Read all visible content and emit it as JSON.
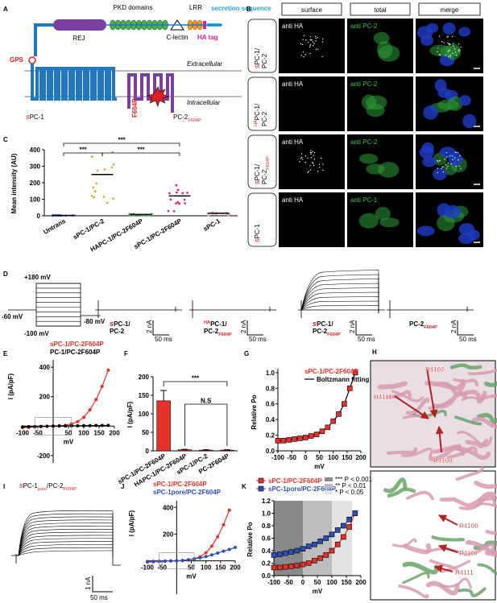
{
  "A": {
    "label": "A",
    "pkd": "PKD domains",
    "lrr": "LRR",
    "secretion": "secretion sequence",
    "rej": "REJ",
    "clectin": "C-lectin",
    "ha_tag": "HA tag",
    "gps": "GPS",
    "extracellular": "Extracellular",
    "intracellular": "Intracellular",
    "mutation": "F604P",
    "pc1": [
      "s",
      "PC-1"
    ],
    "pc2": [
      "PC-2",
      "F604P"
    ]
  },
  "B": {
    "label": "B",
    "columns": [
      "surface",
      "total",
      "merge"
    ],
    "rows": [
      {
        "name": [
          "s",
          "PC-1/",
          "PC-2"
        ],
        "surface": "anti HA",
        "total": "anti PC-2"
      },
      {
        "name": [
          "HA",
          "PC-1/",
          "PC-2"
        ],
        "surface": "anti HA",
        "total": "anti PC-2"
      },
      {
        "name": [
          "s",
          "PC-1/",
          "PC-2",
          "F604P"
        ],
        "surface": "anti HA",
        "total": "anti PC-2"
      },
      {
        "name": [
          "s",
          "PC-1"
        ],
        "surface": "anti HA",
        "total": "anti PC-1"
      }
    ]
  },
  "D": {
    "label": "D",
    "protocol": [
      "+180 mV",
      "-60 mV",
      "-100 mV",
      "-80 mV"
    ],
    "traces": [
      {
        "name": [
          "s",
          "PC-1/",
          "PC-2"
        ],
        "scale": [
          "2 nA",
          "50 ms"
        ]
      },
      {
        "name": [
          "HA",
          "PC-1/",
          "PC-2",
          "F604P"
        ],
        "scale": [
          "2 nA",
          "50 ms"
        ]
      },
      {
        "name": [
          "s",
          "PC-1/",
          "PC-2",
          "F604P"
        ],
        "scale": [
          "2 nA",
          "50 ms"
        ]
      },
      {
        "name": [
          "PC-2",
          "F604P"
        ],
        "scale": [
          "2 nA",
          "50 ms"
        ]
      }
    ]
  },
  "H": {
    "label": "H",
    "top": [
      "R4107",
      "H4111",
      "R4100"
    ],
    "bottom": [
      "R4100",
      "R4107",
      "H4111"
    ]
  },
  "I": {
    "label": "I",
    "name": [
      "s",
      "PC-1",
      "pore",
      "/PC-2",
      "F604P"
    ],
    "scale": [
      "1 nA",
      "50 ms"
    ]
  },
  "chart_data": [
    {
      "type": "dot",
      "label": "C",
      "y_label": "Mean intensity (AU)",
      "categories": [
        "Untrans",
        "sPC-1/PC-2",
        "HAPC-1/PC-2F604P",
        "sPC-1/PC-2F604P",
        "sPC-1"
      ],
      "values": [
        2,
        250,
        8,
        120,
        15
      ],
      "colors": [
        "#1a3fb0",
        "#f39c12",
        "#3cb44b",
        "#e6194b",
        "#f4a6b8"
      ],
      "ylim": [
        0,
        400
      ],
      "yticks": [
        0,
        100,
        200,
        300,
        400
      ],
      "annotations": [
        "***",
        "***",
        "***"
      ]
    },
    {
      "type": "line",
      "label": "E",
      "y_label": "I (pA/pF)",
      "x_label": "mV",
      "marker": "circle",
      "x": [
        -100,
        -80,
        -60,
        -40,
        -20,
        0,
        20,
        40,
        60,
        80,
        100,
        120,
        140,
        160,
        180
      ],
      "series": [
        {
          "name": "sPC-1/PC-2F604P",
          "color": "#e8302a",
          "values": [
            -10,
            -8,
            -5,
            -3,
            -1,
            0,
            2,
            5,
            15,
            30,
            60,
            110,
            180,
            270,
            380
          ]
        },
        {
          "name": "PC-1/PC-2F604P",
          "color": "#000000",
          "values": [
            -5,
            -4,
            -3,
            -2,
            -1,
            0,
            1,
            1,
            2,
            2,
            3,
            3,
            4,
            4,
            5
          ]
        }
      ],
      "xlim": [
        -100,
        200
      ],
      "ylim": [
        -250,
        450
      ],
      "xticks": [
        -100,
        -50,
        50,
        100,
        150,
        200
      ],
      "yticks": [
        -200,
        200,
        400
      ]
    },
    {
      "type": "bar",
      "label": "F",
      "y_label": "I (pA/pF)",
      "categories": [
        "sPC-1/PC-2F604P",
        "HAPC-1/PC-2F604P",
        "sPC-1/PC-2",
        "PC-2F604P"
      ],
      "values": [
        135,
        3,
        2,
        2
      ],
      "errors": [
        28,
        1,
        1,
        1
      ],
      "color": "#e8302a",
      "ylim": [
        0,
        200
      ],
      "yticks": [
        0,
        50,
        100,
        150,
        200
      ],
      "annotations": [
        "***",
        "N.S"
      ]
    },
    {
      "type": "line",
      "label": "G",
      "y_label": "Relative Po",
      "x_label": "mV",
      "marker": "square",
      "fit_label": "Boltzmann fitting",
      "x": [
        -100,
        -80,
        -60,
        -40,
        -20,
        0,
        20,
        40,
        60,
        80,
        100,
        120,
        140,
        160,
        180
      ],
      "series": [
        {
          "name": "sPC-1/PC-2F604P",
          "color": "#e8302a",
          "values": [
            0.13,
            0.13,
            0.14,
            0.15,
            0.16,
            0.17,
            0.19,
            0.21,
            0.25,
            0.3,
            0.38,
            0.47,
            0.6,
            0.8,
            1.0
          ]
        }
      ],
      "xlim": [
        -100,
        200
      ],
      "ylim": [
        0,
        1.05
      ],
      "xticks": [
        -100,
        -50,
        0,
        50,
        100,
        150,
        200
      ],
      "yticks": [
        {
          "value": 0,
          "label": "0.0"
        },
        0.2,
        0.4,
        0.6,
        0.8,
        {
          "value": 1,
          "label": "1.0"
        }
      ]
    },
    {
      "type": "line",
      "label": "J",
      "y_label": "I (pA/pF)",
      "x_label": "mV",
      "marker": "circle",
      "x": [
        -100,
        -80,
        -60,
        -40,
        -20,
        0,
        20,
        40,
        60,
        80,
        100,
        120,
        140,
        160,
        180,
        200
      ],
      "series": [
        {
          "name": "sPC-1/PC-2F604P",
          "color": "#e8302a",
          "values": [
            -10,
            -8,
            -5,
            -3,
            -1,
            0,
            2,
            5,
            15,
            30,
            60,
            110,
            180,
            270,
            380,
            null
          ]
        },
        {
          "name": "sPC-1pore/PC-2F604P",
          "color": "#2a4fb5",
          "values": [
            -5,
            -4,
            -3,
            -2,
            -1,
            0,
            3,
            8,
            14,
            22,
            32,
            44,
            58,
            72,
            85,
            100
          ]
        }
      ],
      "xlim": [
        -100,
        200
      ],
      "ylim": [
        -250,
        450
      ],
      "xticks": [
        -100,
        -50,
        50,
        100,
        150,
        200
      ],
      "yticks": [
        200,
        400
      ]
    },
    {
      "type": "line",
      "label": "K",
      "y_label": "Relative Po",
      "x_label": "mV",
      "marker": "square",
      "x": [
        -100,
        -80,
        -60,
        -40,
        -20,
        0,
        20,
        40,
        60,
        80,
        100,
        120,
        140,
        160,
        180
      ],
      "series": [
        {
          "name": "sPC-1/PC-2F604P",
          "color": "#e8302a",
          "values": [
            0.13,
            0.13,
            0.14,
            0.15,
            0.16,
            0.18,
            0.2,
            0.24,
            0.28,
            0.33,
            0.4,
            0.5,
            0.62,
            0.78,
            1.0
          ]
        },
        {
          "name": "sPC-1pore/PC-2F604P",
          "color": "#2a4fb5",
          "values": [
            0.33,
            0.34,
            0.36,
            0.38,
            0.4,
            0.43,
            0.47,
            0.5,
            0.55,
            0.6,
            0.66,
            0.73,
            0.8,
            0.9,
            1.0
          ]
        }
      ],
      "bands": [
        {
          "from": -100,
          "to": 0,
          "label": "*** P < 0.001",
          "color": "#8a8a8a"
        },
        {
          "from": 0,
          "to": 100,
          "label": "** P < 0.01",
          "color": "#bdbdbd"
        },
        {
          "from": 100,
          "to": 170,
          "label": "* P < 0.05",
          "color": "#e3e3e3"
        }
      ],
      "xlim": [
        -100,
        200
      ],
      "ylim": [
        0,
        1.2
      ],
      "xticks": [
        -100,
        -50,
        0,
        50,
        100,
        150,
        200
      ],
      "yticks": [
        {
          "value": 0,
          "label": "0.0"
        },
        0.2,
        0.4,
        0.6,
        0.8,
        {
          "value": 1,
          "label": "1.0"
        },
        1.2
      ]
    }
  ]
}
